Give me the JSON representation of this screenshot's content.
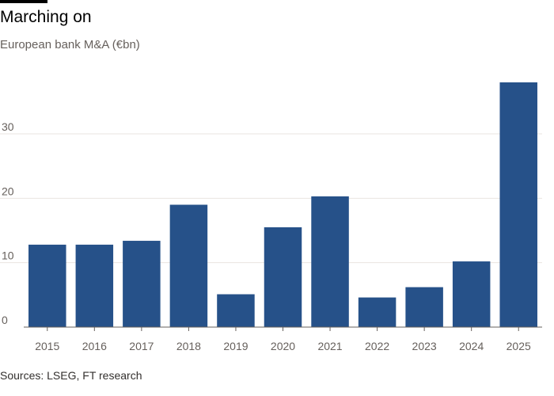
{
  "header": {
    "title": "Marching on",
    "subtitle": "European bank M&A (€bn)"
  },
  "footer": {
    "source": "Sources: LSEG, FT research"
  },
  "colors": {
    "bar": "#265189",
    "grid": "#e9e5e1",
    "baseline": "#66605c"
  },
  "chart_data": {
    "type": "bar",
    "title": "Marching on",
    "subtitle": "European bank M&A (€bn)",
    "xlabel": "",
    "ylabel": "",
    "categories": [
      "2015",
      "2016",
      "2017",
      "2018",
      "2019",
      "2020",
      "2021",
      "2022",
      "2023",
      "2024",
      "2025"
    ],
    "values": [
      12.8,
      12.8,
      13.4,
      19.0,
      5.1,
      15.5,
      20.3,
      4.6,
      6.2,
      10.2,
      38.0
    ],
    "ylim": [
      0,
      38
    ],
    "yticks": [
      0,
      10,
      20,
      30
    ],
    "ytick_labels": [
      "0",
      "10",
      "20",
      "30"
    ],
    "grid": true,
    "legend": "none"
  }
}
